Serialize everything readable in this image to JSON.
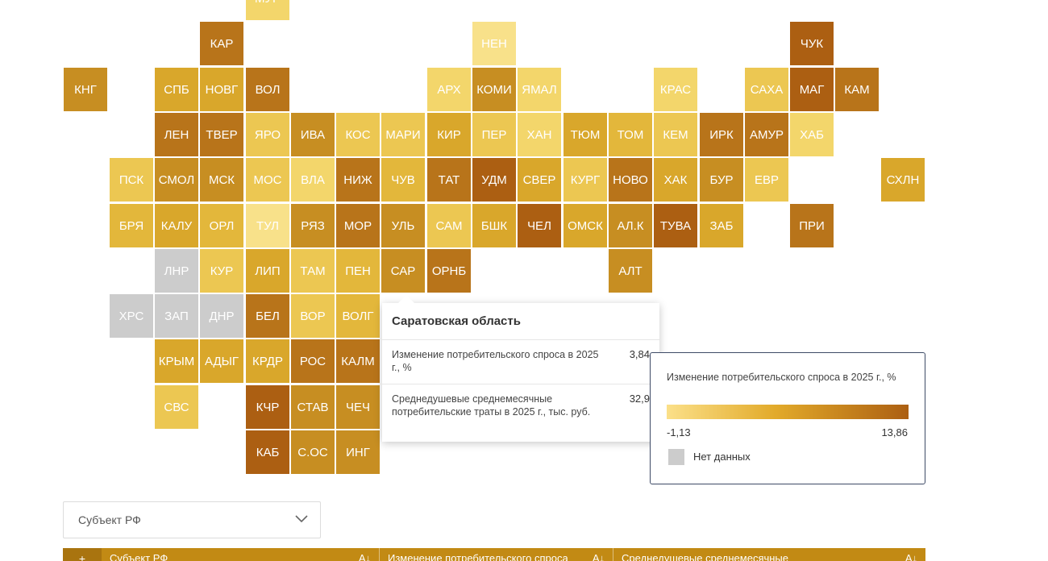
{
  "colors": {
    "c1": "#ac5f12",
    "c2": "#b8741a",
    "c3": "#c78e22",
    "c4": "#d9a72b",
    "c5": "#e3b73b",
    "c6": "#ecc752",
    "c7": "#f3d66b",
    "c8": "#f8e18a",
    "nodata": "#cccccc"
  },
  "tiles": [
    {
      "code": "МУР",
      "c": 7,
      "col": 5,
      "row": 0
    },
    {
      "code": "КАР",
      "c": 2,
      "col": 4,
      "row": 1
    },
    {
      "code": "НЕН",
      "c": 8,
      "col": 10,
      "row": 1
    },
    {
      "code": "ЧУК",
      "c": 1,
      "col": 17,
      "row": 1
    },
    {
      "code": "КНГ",
      "c": 3,
      "col": 1,
      "row": 2
    },
    {
      "code": "СПБ",
      "c": 4,
      "col": 3,
      "row": 2
    },
    {
      "code": "НОВГ",
      "c": 4,
      "col": 4,
      "row": 2
    },
    {
      "code": "ВОЛ",
      "c": 2,
      "col": 5,
      "row": 2
    },
    {
      "code": "АРХ",
      "c": 7,
      "col": 9,
      "row": 2
    },
    {
      "code": "КОМИ",
      "c": 3,
      "col": 10,
      "row": 2
    },
    {
      "code": "ЯМАЛ",
      "c": 7,
      "col": 11,
      "row": 2
    },
    {
      "code": "КРАС",
      "c": 7,
      "col": 14,
      "row": 2
    },
    {
      "code": "САХА",
      "c": 6,
      "col": 16,
      "row": 2
    },
    {
      "code": "МАГ",
      "c": 1,
      "col": 17,
      "row": 2
    },
    {
      "code": "КАМ",
      "c": 2,
      "col": 18,
      "row": 2
    },
    {
      "code": "ЛЕН",
      "c": 2,
      "col": 3,
      "row": 3
    },
    {
      "code": "ТВЕР",
      "c": 2,
      "col": 4,
      "row": 3
    },
    {
      "code": "ЯРО",
      "c": 6,
      "col": 5,
      "row": 3
    },
    {
      "code": "ИВА",
      "c": 3,
      "col": 6,
      "row": 3
    },
    {
      "code": "КОС",
      "c": 6,
      "col": 7,
      "row": 3
    },
    {
      "code": "МАРИ",
      "c": 6,
      "col": 8,
      "row": 3
    },
    {
      "code": "КИР",
      "c": 4,
      "col": 9,
      "row": 3
    },
    {
      "code": "ПЕР",
      "c": 6,
      "col": 10,
      "row": 3
    },
    {
      "code": "ХАН",
      "c": 7,
      "col": 11,
      "row": 3
    },
    {
      "code": "ТЮМ",
      "c": 4,
      "col": 12,
      "row": 3
    },
    {
      "code": "ТОМ",
      "c": 5,
      "col": 13,
      "row": 3
    },
    {
      "code": "КЕМ",
      "c": 6,
      "col": 14,
      "row": 3
    },
    {
      "code": "ИРК",
      "c": 2,
      "col": 15,
      "row": 3
    },
    {
      "code": "АМУР",
      "c": 2,
      "col": 16,
      "row": 3
    },
    {
      "code": "ХАБ",
      "c": 7,
      "col": 17,
      "row": 3
    },
    {
      "code": "ПСК",
      "c": 6,
      "col": 2,
      "row": 4
    },
    {
      "code": "СМОЛ",
      "c": 3,
      "col": 3,
      "row": 4
    },
    {
      "code": "МСК",
      "c": 3,
      "col": 4,
      "row": 4
    },
    {
      "code": "МОС",
      "c": 6,
      "col": 5,
      "row": 4
    },
    {
      "code": "ВЛА",
      "c": 7,
      "col": 6,
      "row": 4
    },
    {
      "code": "НИЖ",
      "c": 2,
      "col": 7,
      "row": 4
    },
    {
      "code": "ЧУВ",
      "c": 5,
      "col": 8,
      "row": 4
    },
    {
      "code": "ТАТ",
      "c": 2,
      "col": 9,
      "row": 4
    },
    {
      "code": "УДМ",
      "c": 1,
      "col": 10,
      "row": 4
    },
    {
      "code": "СВЕР",
      "c": 4,
      "col": 11,
      "row": 4
    },
    {
      "code": "КУРГ",
      "c": 6,
      "col": 12,
      "row": 4
    },
    {
      "code": "НОВО",
      "c": 2,
      "col": 13,
      "row": 4
    },
    {
      "code": "ХАК",
      "c": 4,
      "col": 14,
      "row": 4
    },
    {
      "code": "БУР",
      "c": 3,
      "col": 15,
      "row": 4
    },
    {
      "code": "ЕВР",
      "c": 6,
      "col": 16,
      "row": 4
    },
    {
      "code": "СХЛН",
      "c": 4,
      "col": 19,
      "row": 4
    },
    {
      "code": "БРЯ",
      "c": 5,
      "col": 2,
      "row": 5
    },
    {
      "code": "КАЛУ",
      "c": 4,
      "col": 3,
      "row": 5
    },
    {
      "code": "ОРЛ",
      "c": 5,
      "col": 4,
      "row": 5
    },
    {
      "code": "ТУЛ",
      "c": 8,
      "col": 5,
      "row": 5
    },
    {
      "code": "РЯЗ",
      "c": 3,
      "col": 6,
      "row": 5
    },
    {
      "code": "МОР",
      "c": 2,
      "col": 7,
      "row": 5
    },
    {
      "code": "УЛЬ",
      "c": 3,
      "col": 8,
      "row": 5
    },
    {
      "code": "САМ",
      "c": 6,
      "col": 9,
      "row": 5
    },
    {
      "code": "БШК",
      "c": 4,
      "col": 10,
      "row": 5
    },
    {
      "code": "ЧЕЛ",
      "c": 1,
      "col": 11,
      "row": 5
    },
    {
      "code": "ОМСК",
      "c": 4,
      "col": 12,
      "row": 5
    },
    {
      "code": "АЛ.К",
      "c": 3,
      "col": 13,
      "row": 5
    },
    {
      "code": "ТУВА",
      "c": 1,
      "col": 14,
      "row": 5
    },
    {
      "code": "ЗАБ",
      "c": 4,
      "col": 15,
      "row": 5
    },
    {
      "code": "ПРИ",
      "c": 2,
      "col": 17,
      "row": 5
    },
    {
      "code": "ЛНР",
      "c": 0,
      "col": 3,
      "row": 6
    },
    {
      "code": "КУР",
      "c": 6,
      "col": 4,
      "row": 6
    },
    {
      "code": "ЛИП",
      "c": 4,
      "col": 5,
      "row": 6
    },
    {
      "code": "ТАМ",
      "c": 6,
      "col": 6,
      "row": 6
    },
    {
      "code": "ПЕН",
      "c": 5,
      "col": 7,
      "row": 6
    },
    {
      "code": "САР",
      "c": 3,
      "col": 8,
      "row": 6
    },
    {
      "code": "ОРНБ",
      "c": 2,
      "col": 9,
      "row": 6
    },
    {
      "code": "АЛТ",
      "c": 3,
      "col": 13,
      "row": 6
    },
    {
      "code": "ХРС",
      "c": 0,
      "col": 2,
      "row": 7
    },
    {
      "code": "ЗАП",
      "c": 0,
      "col": 3,
      "row": 7
    },
    {
      "code": "ДНР",
      "c": 0,
      "col": 4,
      "row": 7
    },
    {
      "code": "БЕЛ",
      "c": 2,
      "col": 5,
      "row": 7
    },
    {
      "code": "ВОР",
      "c": 6,
      "col": 6,
      "row": 7
    },
    {
      "code": "ВОЛГ",
      "c": 5,
      "col": 7,
      "row": 7
    },
    {
      "code": "КРЫМ",
      "c": 4,
      "col": 3,
      "row": 8
    },
    {
      "code": "АДЫГ",
      "c": 4,
      "col": 4,
      "row": 8
    },
    {
      "code": "КРДР",
      "c": 4,
      "col": 5,
      "row": 8
    },
    {
      "code": "РОС",
      "c": 2,
      "col": 6,
      "row": 8
    },
    {
      "code": "КАЛМ",
      "c": 2,
      "col": 7,
      "row": 8
    },
    {
      "code": "СВС",
      "c": 6,
      "col": 3,
      "row": 9
    },
    {
      "code": "КЧР",
      "c": 1,
      "col": 5,
      "row": 9
    },
    {
      "code": "СТАВ",
      "c": 3,
      "col": 6,
      "row": 9
    },
    {
      "code": "ЧЕЧ",
      "c": 3,
      "col": 7,
      "row": 9
    },
    {
      "code": "КАБ",
      "c": 1,
      "col": 5,
      "row": 10
    },
    {
      "code": "С.ОС",
      "c": 3,
      "col": 6,
      "row": 10
    },
    {
      "code": "ИНГ",
      "c": 3,
      "col": 7,
      "row": 10
    }
  ],
  "tooltip": {
    "title": "Саратовская область",
    "rows": [
      {
        "label": "Изменение потребительского спроса в 2025 г., %",
        "value": "3,84"
      },
      {
        "label": "Среднедушевые среднемесячные потребительские траты в 2025 г., тыс. руб.",
        "value": "32,9"
      }
    ]
  },
  "legend": {
    "title": "Изменение потребительского спроса в 2025 г., %",
    "min": "-1,13",
    "max": "13,86",
    "nodata": "Нет данных"
  },
  "select": {
    "placeholder": "Субъект РФ"
  },
  "table": {
    "num_header": "+",
    "columns": [
      {
        "label": "Субъект РФ",
        "sort": "A↓"
      },
      {
        "label": "Изменение потребительского спроса",
        "sort": "A↓"
      },
      {
        "label": "Среднедушевые среднемесячные",
        "sort": "A↓"
      }
    ]
  }
}
